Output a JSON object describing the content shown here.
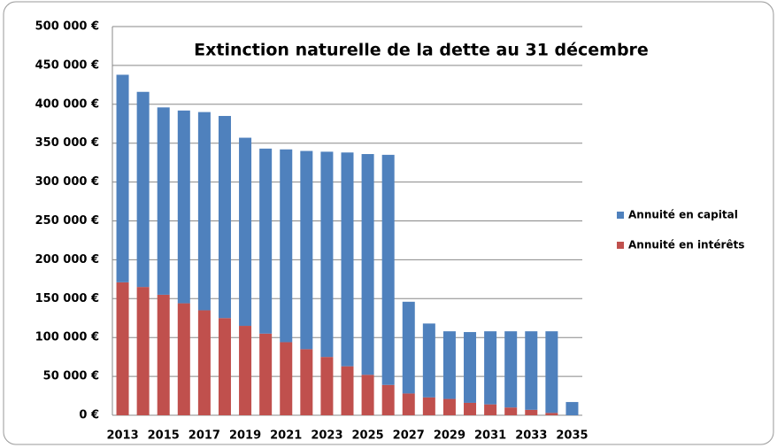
{
  "chart_data": {
    "type": "stacked_bar",
    "title": "Extinction naturelle de la dette au 31 décembre",
    "categories": [
      "2013",
      null,
      "2015",
      null,
      "2017",
      null,
      "2019",
      null,
      "2021",
      null,
      "2023",
      null,
      "2025",
      null,
      "2027",
      null,
      "2029",
      null,
      "2031",
      null,
      "2033",
      null,
      "2035"
    ],
    "series": [
      {
        "name": "Annuité en capital",
        "color": "#4f81bd",
        "values": [
          267000,
          251000,
          241000,
          248000,
          255000,
          260000,
          242000,
          238000,
          248000,
          255000,
          264000,
          275000,
          284000,
          296000,
          118000,
          95000,
          87000,
          91000,
          94000,
          98000,
          101000,
          105000,
          17000
        ]
      },
      {
        "name": "Annuité en intérêts",
        "color": "#c0504d",
        "values": [
          171000,
          165000,
          155000,
          144000,
          135000,
          125000,
          115000,
          105000,
          94000,
          85000,
          75000,
          63000,
          52000,
          39000,
          28000,
          23000,
          21000,
          16000,
          14000,
          10000,
          7000,
          3000,
          0
        ]
      }
    ],
    "ylim": [
      0,
      500000
    ],
    "yticks": [
      {
        "value": 0,
        "label": "0 €"
      },
      {
        "value": 50000,
        "label": "50 000 €"
      },
      {
        "value": 100000,
        "label": "100 000 €"
      },
      {
        "value": 150000,
        "label": "150 000 €"
      },
      {
        "value": 200000,
        "label": "200 000 €"
      },
      {
        "value": 250000,
        "label": "250 000 €"
      },
      {
        "value": 300000,
        "label": "300 000 €"
      },
      {
        "value": 350000,
        "label": "350 000 €"
      },
      {
        "value": 400000,
        "label": "400 000 €"
      },
      {
        "value": 450000,
        "label": "450 000 €"
      },
      {
        "value": 500000,
        "label": "500 000 €"
      }
    ],
    "grid": true,
    "legend": "right"
  }
}
